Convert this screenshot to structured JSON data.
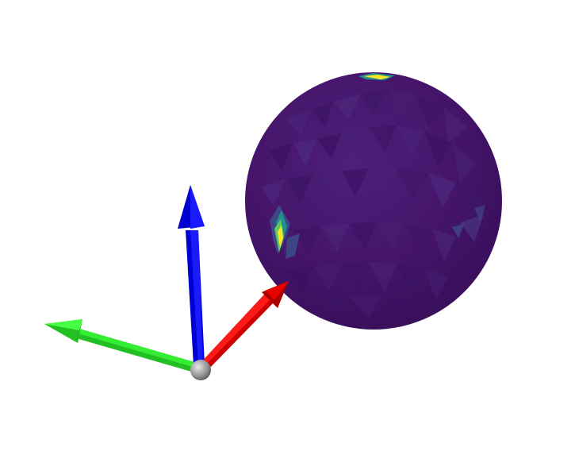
{
  "scene": {
    "background": "#ffffff",
    "sphere": {
      "colormap": "viridis",
      "base_color": "#46156b",
      "highlight_colors": [
        "#fde725",
        "#5ec962",
        "#21918c",
        "#3b528b"
      ]
    },
    "axes": {
      "x_color": "#ff0000",
      "y_color": "#00ff00",
      "z_color": "#0000ff",
      "origin_color": "#9a9a9a"
    }
  }
}
